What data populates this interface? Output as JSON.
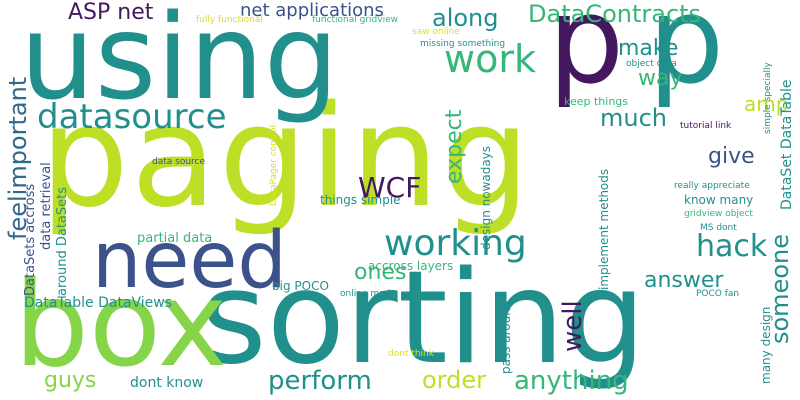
{
  "palette": {
    "purple": "#44185e",
    "indigo": "#3b528b",
    "blue": "#31688e",
    "teal": "#21908d",
    "green": "#35b779",
    "lime": "#86d549",
    "yellow": "#bddf26",
    "yellowpale": "#dde318"
  },
  "words": {
    "paging": "paging",
    "using": "using",
    "sorting": "sorting",
    "box": "box",
    "p1": "p",
    "p2": "p",
    "need": "need",
    "datasource": "datasource",
    "working": "working",
    "work": "work",
    "feel_important": "feelimportant",
    "wcf": "WCF",
    "hack": "hack",
    "perform": "perform",
    "anything": "anything",
    "someone": "someone",
    "asp_net": "ASP net",
    "data_contracts": "DataContracts",
    "along": "along",
    "make": "make",
    "way": "way",
    "amp": "amp",
    "much": "much",
    "expect": "expect",
    "give": "give",
    "answer": "answer",
    "ones": "ones",
    "well": "well",
    "order": "order",
    "guys": "guys",
    "net_applications": "net applications",
    "dataset_datatable": "DataSet DataTable",
    "datatable_dataviews": "DataTable DataViews",
    "dont_know": "dont know",
    "datasets_accross": "DataSets accross",
    "data_retrieval": "data retrieval",
    "around_datasets": "around DataSets",
    "partial_data": "partial data",
    "know_many": "know many",
    "many_design": "many design",
    "pass_around": "pass around",
    "design_nowadays": "design nowadays",
    "implement_methods": "implement methods",
    "things_simple": "things simple",
    "accross_layers": "accross layers",
    "big_poco": "big POCO",
    "online_made": "online made",
    "keep_things": "keep things",
    "data_source": "data source",
    "fully_functional": "fully functional",
    "functional_gridview": "functional gridview",
    "saw_online": "saw online",
    "missing_something": "missing something",
    "object_data": "object data",
    "simple_specially": "simple specially",
    "tutorial_link": "tutorial link",
    "really_appreciate": "really appreciate",
    "gridview_object": "gridview object",
    "ms_dont": "MS dont",
    "poco_fan": "POCO fan",
    "datapager_control": "DataPager control",
    "dont_think": "dont think"
  }
}
